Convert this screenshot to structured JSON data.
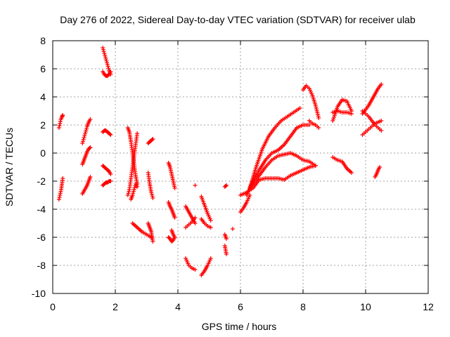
{
  "chart_data": {
    "type": "scatter",
    "title": "Day 276 of 2022, Sidereal Day-to-day VTEC variation (SDTVAR) for receiver ulab",
    "xlabel": "GPS time / hours",
    "ylabel": "SDTVAR / TECUs",
    "xlim": [
      0,
      12
    ],
    "ylim": [
      -10,
      8
    ],
    "xticks": [
      0,
      2,
      4,
      6,
      8,
      10,
      12
    ],
    "yticks": [
      -10,
      -8,
      -6,
      -4,
      -2,
      0,
      2,
      4,
      6,
      8
    ],
    "grid": true,
    "marker": "+",
    "color": "#ff0000",
    "series": [
      {
        "x": [
          0.2,
          0.23,
          0.26,
          0.3,
          0.32
        ],
        "y": [
          1.8,
          2.1,
          2.4,
          2.6,
          2.7
        ]
      },
      {
        "x": [
          0.2,
          0.23,
          0.27,
          0.3,
          0.32
        ],
        "y": [
          -3.3,
          -3.0,
          -2.6,
          -2.1,
          -1.8
        ]
      },
      {
        "x": [
          0.95,
          1.0,
          1.05,
          1.1,
          1.15,
          1.2
        ],
        "y": [
          0.7,
          1.1,
          1.5,
          1.9,
          2.2,
          2.4
        ]
      },
      {
        "x": [
          0.95,
          1.0,
          1.05,
          1.1,
          1.15,
          1.2
        ],
        "y": [
          -0.8,
          -0.5,
          -0.2,
          0.1,
          0.3,
          0.4
        ]
      },
      {
        "x": [
          0.95,
          1.0,
          1.05,
          1.1,
          1.15,
          1.2
        ],
        "y": [
          -2.9,
          -2.7,
          -2.5,
          -2.3,
          -2.0,
          -1.7
        ]
      },
      {
        "x": [
          1.6,
          1.65,
          1.7,
          1.75,
          1.8,
          1.85
        ],
        "y": [
          7.5,
          7.1,
          6.7,
          6.3,
          5.9,
          5.6
        ]
      },
      {
        "x": [
          1.6,
          1.65,
          1.7,
          1.75,
          1.8,
          1.85
        ],
        "y": [
          5.8,
          5.6,
          5.5,
          5.5,
          5.6,
          5.8
        ]
      },
      {
        "x": [
          1.6,
          1.65,
          1.7,
          1.75,
          1.8,
          1.85
        ],
        "y": [
          1.5,
          1.6,
          1.6,
          1.5,
          1.4,
          1.3
        ]
      },
      {
        "x": [
          1.6,
          1.65,
          1.7,
          1.75,
          1.8,
          1.85
        ],
        "y": [
          -0.9,
          -1.0,
          -1.1,
          -1.2,
          -1.3,
          -1.5
        ]
      },
      {
        "x": [
          1.6,
          1.65,
          1.7,
          1.75,
          1.8,
          1.85
        ],
        "y": [
          -2.3,
          -2.2,
          -2.1,
          -2.1,
          -2.0,
          -2.0
        ]
      },
      {
        "x": [
          2.4,
          2.45,
          2.5,
          2.55,
          2.6,
          2.65,
          2.7
        ],
        "y": [
          1.8,
          1.5,
          0.8,
          0.0,
          -0.8,
          -1.6,
          -2.2
        ]
      },
      {
        "x": [
          2.4,
          2.45,
          2.5,
          2.55,
          2.6,
          2.65,
          2.7
        ],
        "y": [
          -3.0,
          -2.6,
          -1.8,
          -1.0,
          -0.2,
          0.6,
          1.4
        ]
      },
      {
        "x": [
          2.5,
          2.55,
          2.6,
          2.65,
          2.7
        ],
        "y": [
          -3.3,
          -3.0,
          -2.6,
          -2.2,
          -2.4
        ]
      },
      {
        "x": [
          2.55,
          2.7,
          2.85,
          3.0,
          3.15
        ],
        "y": [
          -5.0,
          -5.3,
          -5.6,
          -5.8,
          -6.0
        ]
      },
      {
        "x": [
          3.05,
          3.1,
          3.15,
          3.2
        ],
        "y": [
          -5.0,
          -5.3,
          -5.6,
          -6.3
        ]
      },
      {
        "x": [
          3.05,
          3.1,
          3.15,
          3.2
        ],
        "y": [
          0.7,
          0.8,
          0.9,
          1.0
        ]
      },
      {
        "x": [
          3.05,
          3.1,
          3.15,
          3.2
        ],
        "y": [
          -1.4,
          -2.2,
          -2.8,
          -3.2
        ]
      },
      {
        "x": [
          3.7,
          3.75,
          3.8,
          3.85,
          3.9
        ],
        "y": [
          -0.7,
          -1.0,
          -1.5,
          -2.0,
          -2.5
        ]
      },
      {
        "x": [
          3.7,
          3.75,
          3.8,
          3.85,
          3.9
        ],
        "y": [
          -3.5,
          -3.8,
          -4.0,
          -4.3,
          -4.6
        ]
      },
      {
        "x": [
          3.7,
          3.75,
          3.8,
          3.85,
          3.9
        ],
        "y": [
          -6.0,
          -6.1,
          -6.3,
          -6.2,
          -6.0
        ]
      },
      {
        "x": [
          3.8,
          3.85,
          3.9
        ],
        "y": [
          -5.5,
          -5.8,
          -6.0
        ]
      },
      {
        "x": [
          4.25,
          4.35,
          4.45,
          4.55
        ],
        "y": [
          -3.8,
          -4.2,
          -4.6,
          -5.0
        ]
      },
      {
        "x": [
          4.25,
          4.35,
          4.45,
          4.55
        ],
        "y": [
          -5.3,
          -5.1,
          -4.9,
          -4.6
        ]
      },
      {
        "x": [
          4.25,
          4.35,
          4.45,
          4.55
        ],
        "y": [
          -7.5,
          -8.0,
          -8.2,
          -8.3
        ]
      },
      {
        "x": [
          4.55
        ],
        "y": [
          -2.3
        ]
      },
      {
        "x": [
          4.75,
          4.85,
          4.95,
          5.05
        ],
        "y": [
          -3.1,
          -3.7,
          -4.3,
          -4.8
        ]
      },
      {
        "x": [
          4.75,
          4.85,
          4.95,
          5.05
        ],
        "y": [
          -4.7,
          -5.0,
          -5.2,
          -5.3
        ]
      },
      {
        "x": [
          4.75,
          4.85,
          4.95,
          5.05
        ],
        "y": [
          -8.7,
          -8.4,
          -8.0,
          -7.5
        ]
      },
      {
        "x": [
          5.5,
          5.55
        ],
        "y": [
          -2.4,
          -2.3
        ]
      },
      {
        "x": [
          5.5,
          5.55
        ],
        "y": [
          -5.8,
          -6.1
        ]
      },
      {
        "x": [
          5.5,
          5.55
        ],
        "y": [
          -6.6,
          -7.2
        ]
      },
      {
        "x": [
          5.75
        ],
        "y": [
          -5.4
        ]
      },
      {
        "x": [
          6.0,
          6.1,
          6.2,
          6.3
        ],
        "y": [
          -4.2,
          -3.9,
          -3.5,
          -3.0
        ]
      },
      {
        "x": [
          6.3,
          6.5,
          6.7,
          6.9,
          7.1,
          7.3,
          7.5,
          7.7,
          7.9
        ],
        "y": [
          -2.5,
          -1.0,
          0.3,
          1.2,
          1.8,
          2.3,
          2.6,
          2.9,
          3.2
        ]
      },
      {
        "x": [
          6.2,
          6.4,
          6.6,
          6.8,
          7.0,
          7.2,
          7.4,
          7.6,
          7.8,
          8.0,
          8.2
        ],
        "y": [
          -3.0,
          -2.0,
          -1.2,
          -0.5,
          0.0,
          0.2,
          0.6,
          1.2,
          1.8,
          2.0,
          2.0
        ]
      },
      {
        "x": [
          6.0,
          6.2,
          6.4,
          6.6,
          6.8,
          7.0,
          7.2,
          7.4,
          7.6,
          7.8,
          8.0,
          8.2,
          8.4
        ],
        "y": [
          -3.0,
          -2.8,
          -2.5,
          -1.9,
          -1.8,
          -1.8,
          -1.8,
          -1.9,
          -1.6,
          -1.4,
          -1.2,
          -1.0,
          -0.9
        ]
      },
      {
        "x": [
          6.4,
          6.6,
          6.8,
          7.0,
          7.2,
          7.4,
          7.6,
          7.8,
          8.0,
          8.2,
          8.4
        ],
        "y": [
          -2.2,
          -1.6,
          -1.0,
          -0.5,
          -0.2,
          -0.1,
          0.0,
          -0.2,
          -0.5,
          -0.6,
          -0.9
        ]
      },
      {
        "x": [
          8.0,
          8.1,
          8.2,
          8.3,
          8.4,
          8.5
        ],
        "y": [
          4.5,
          4.8,
          4.6,
          4.1,
          3.4,
          2.5
        ]
      },
      {
        "x": [
          8.2,
          8.3,
          8.4,
          8.5
        ],
        "y": [
          2.3,
          2.1,
          2.0,
          1.8
        ]
      },
      {
        "x": [
          8.95,
          9.1,
          9.25,
          9.4,
          9.55
        ],
        "y": [
          2.3,
          3.3,
          3.8,
          3.7,
          3.0
        ]
      },
      {
        "x": [
          8.95,
          9.1,
          9.25,
          9.4,
          9.55
        ],
        "y": [
          2.9,
          3.0,
          2.9,
          2.9,
          2.8
        ]
      },
      {
        "x": [
          8.95,
          9.1,
          9.25,
          9.4,
          9.55
        ],
        "y": [
          -0.3,
          -0.5,
          -0.6,
          -1.1,
          -1.4
        ]
      },
      {
        "x": [
          9.9,
          10.0,
          10.1,
          10.2,
          10.3,
          10.4,
          10.5
        ],
        "y": [
          2.8,
          3.1,
          3.4,
          3.8,
          4.2,
          4.6,
          4.9
        ]
      },
      {
        "x": [
          9.9,
          10.0,
          10.1,
          10.2,
          10.3,
          10.4,
          10.5
        ],
        "y": [
          1.3,
          1.5,
          1.7,
          1.9,
          2.1,
          2.2,
          2.3
        ]
      },
      {
        "x": [
          9.9,
          10.0,
          10.1,
          10.2,
          10.3,
          10.4,
          10.5
        ],
        "y": [
          3.0,
          2.8,
          2.6,
          2.3,
          2.0,
          1.8,
          1.6
        ]
      },
      {
        "x": [
          10.3,
          10.35,
          10.4,
          10.45
        ],
        "y": [
          -1.7,
          -1.5,
          -1.2,
          -1.0
        ]
      }
    ]
  }
}
